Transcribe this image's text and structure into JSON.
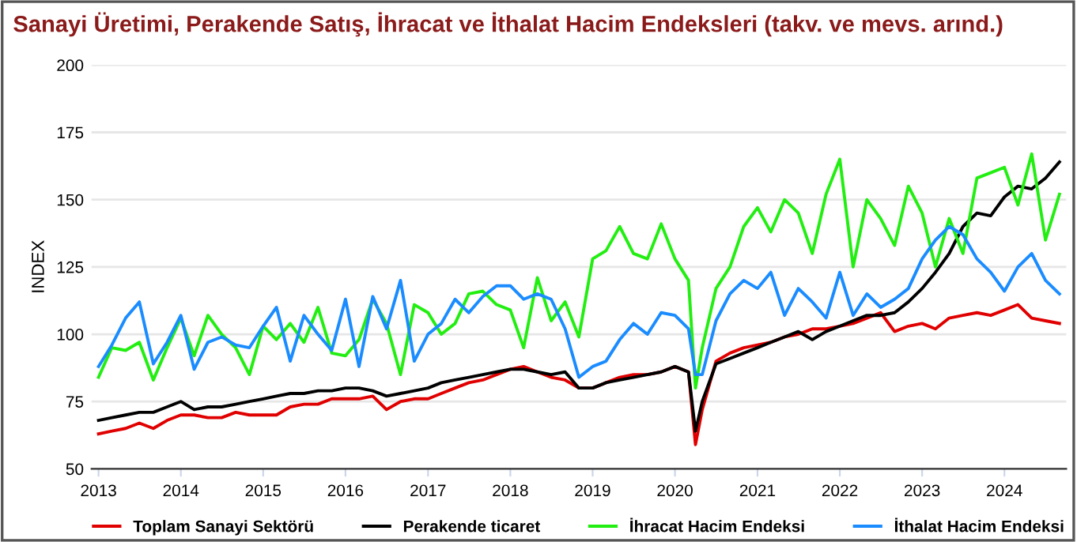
{
  "chart_data": {
    "type": "line",
    "title": "Sanayi Üretimi, Perakende Satış, İhracat ve İthalat Hacim Endeksleri (takv. ve mevs. arınd.)",
    "ylabel": "INDEX",
    "x": [
      "2013-01",
      "2013-03",
      "2013-05",
      "2013-07",
      "2013-09",
      "2013-11",
      "2014-01",
      "2014-03",
      "2014-05",
      "2014-07",
      "2014-09",
      "2014-11",
      "2015-01",
      "2015-03",
      "2015-05",
      "2015-07",
      "2015-09",
      "2015-11",
      "2016-01",
      "2016-03",
      "2016-05",
      "2016-07",
      "2016-09",
      "2016-11",
      "2017-01",
      "2017-03",
      "2017-05",
      "2017-07",
      "2017-09",
      "2017-11",
      "2018-01",
      "2018-03",
      "2018-05",
      "2018-07",
      "2018-09",
      "2018-11",
      "2019-01",
      "2019-03",
      "2019-05",
      "2019-07",
      "2019-09",
      "2019-11",
      "2020-01",
      "2020-03",
      "2020-04",
      "2020-05",
      "2020-07",
      "2020-09",
      "2020-11",
      "2021-01",
      "2021-03",
      "2021-05",
      "2021-07",
      "2021-09",
      "2021-11",
      "2022-01",
      "2022-03",
      "2022-05",
      "2022-07",
      "2022-09",
      "2022-11",
      "2023-01",
      "2023-03",
      "2023-05",
      "2023-07",
      "2023-09",
      "2023-11",
      "2024-01",
      "2024-03",
      "2024-05",
      "2024-07",
      "2024-09"
    ],
    "series": [
      {
        "name": "Toplam Sanayi Sektörü",
        "color": "#e00000",
        "values": [
          63,
          64,
          65,
          67,
          65,
          68,
          70,
          70,
          69,
          69,
          71,
          70,
          70,
          70,
          73,
          74,
          74,
          76,
          76,
          76,
          77,
          72,
          75,
          76,
          76,
          78,
          80,
          82,
          83,
          85,
          87,
          88,
          86,
          84,
          83,
          80,
          80,
          82,
          84,
          85,
          85,
          86,
          88,
          86,
          59,
          72,
          90,
          93,
          95,
          96,
          97,
          99,
          100,
          102,
          102,
          103,
          104,
          106,
          108,
          101,
          103,
          104,
          102,
          106,
          107,
          108,
          107,
          109,
          111,
          106,
          105,
          104
        ]
      },
      {
        "name": "Perakende ticaret",
        "color": "#000000",
        "values": [
          68,
          69,
          70,
          71,
          71,
          73,
          75,
          72,
          73,
          73,
          74,
          75,
          76,
          77,
          78,
          78,
          79,
          79,
          80,
          80,
          79,
          77,
          78,
          79,
          80,
          82,
          83,
          84,
          85,
          86,
          87,
          87,
          86,
          85,
          86,
          80,
          80,
          82,
          83,
          84,
          85,
          86,
          88,
          86,
          64,
          75,
          89,
          91,
          93,
          95,
          97,
          99,
          101,
          98,
          101,
          103,
          105,
          107,
          107,
          108,
          112,
          117,
          123,
          130,
          140,
          145,
          144,
          151,
          155,
          154,
          158,
          164
        ]
      },
      {
        "name": "İhracat Hacim Endeksi",
        "color": "#22ee11",
        "values": [
          84,
          95,
          94,
          97,
          83,
          95,
          106,
          92,
          107,
          100,
          95,
          85,
          103,
          98,
          104,
          97,
          110,
          93,
          92,
          98,
          113,
          104,
          85,
          111,
          108,
          100,
          104,
          115,
          116,
          111,
          109,
          95,
          121,
          105,
          112,
          99,
          128,
          131,
          140,
          130,
          128,
          141,
          128,
          120,
          80,
          95,
          117,
          125,
          140,
          147,
          138,
          150,
          145,
          130,
          152,
          165,
          125,
          150,
          143,
          133,
          155,
          145,
          125,
          143,
          130,
          158,
          160,
          162,
          148,
          167,
          135,
          152
        ]
      },
      {
        "name": "İthalat Hacim Endeksi",
        "color": "#1a8cff",
        "values": [
          88,
          96,
          106,
          112,
          89,
          97,
          107,
          87,
          97,
          99,
          96,
          95,
          103,
          110,
          90,
          107,
          100,
          94,
          113,
          88,
          114,
          102,
          120,
          90,
          100,
          104,
          113,
          108,
          114,
          118,
          118,
          113,
          115,
          113,
          102,
          84,
          88,
          90,
          98,
          104,
          100,
          108,
          107,
          102,
          85,
          85,
          105,
          115,
          120,
          117,
          123,
          107,
          117,
          112,
          106,
          123,
          107,
          115,
          110,
          113,
          117,
          128,
          135,
          140,
          137,
          128,
          123,
          116,
          125,
          130,
          120,
          115
        ]
      }
    ],
    "xlim": [
      "2012-12",
      "2024-10"
    ],
    "xticks": [
      "2013",
      "2014",
      "2015",
      "2016",
      "2017",
      "2018",
      "2019",
      "2020",
      "2021",
      "2022",
      "2023",
      "2024"
    ],
    "ylim": [
      50,
      200
    ],
    "yticks": [
      50,
      75,
      100,
      125,
      150,
      175,
      200
    ],
    "grid": "y",
    "legend": "bottom",
    "marker": "none",
    "line_style": "solid"
  }
}
